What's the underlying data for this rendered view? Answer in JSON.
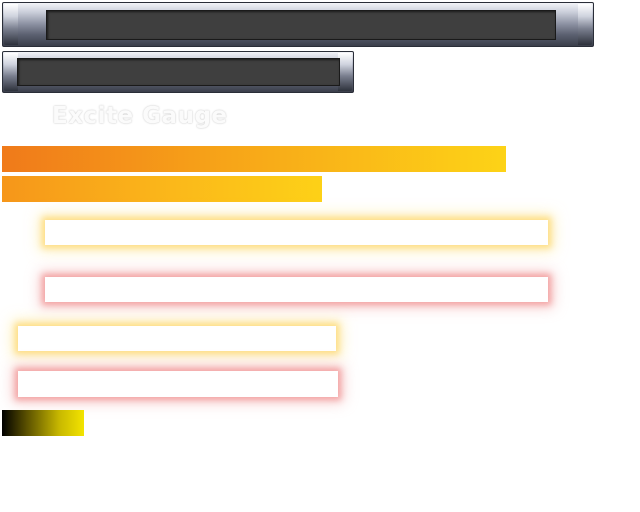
{
  "gauge": {
    "title": "Excite Gauge"
  },
  "colors": {
    "frame_metal": "#8a8fa0",
    "inner_panel": "#3f3f3f",
    "gauge_orange": "#f07a1a",
    "gauge_yellow": "#fdd317",
    "glow_yellow": "#fddc82",
    "glow_pink": "#f2a0a0",
    "swatch_black": "#000000",
    "swatch_yellow": "#f3e400"
  }
}
